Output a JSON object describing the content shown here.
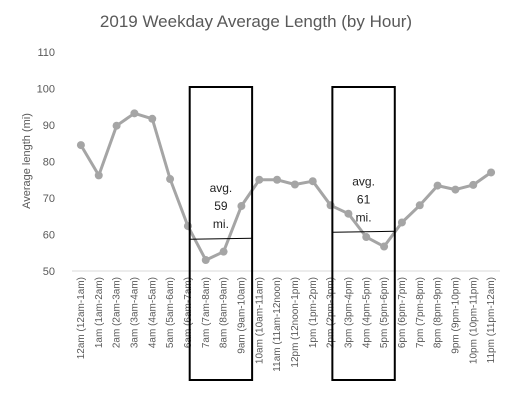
{
  "chart_data": {
    "type": "line",
    "title": "2019 Weekday Average Length (by Hour)",
    "xlabel": "",
    "ylabel": "Average length (mi)",
    "ylim": [
      50,
      110
    ],
    "yticks": [
      "50",
      "60",
      "70",
      "80",
      "90",
      "100",
      "110"
    ],
    "grid": false,
    "legend": "none",
    "categories": [
      "12am (12am-1am)",
      "1am (1am-2am)",
      "2am (2am-3am)",
      "3am (3am-4am)",
      "4am (4am-5am)",
      "5am (5am-6am)",
      "6am (6am-7am)",
      "7am (7am-8am)",
      "8am (8am-9am)",
      "9am (9am-10am)",
      "10am (10am-11am)",
      "11am (11am-12noon)",
      "12pm (12noon-1pm)",
      "1pm (1pm-2pm)",
      "2pm (2pm-3pm)",
      "3pm (3pm-4pm)",
      "4pm (4pm-5pm)",
      "5pm (5pm-6pm)",
      "6pm (6pm-7pm)",
      "7pm (7pm-8pm)",
      "8pm (8pm-9pm)",
      "9pm (9pm-10pm)",
      "10pm (10pm-11pm)",
      "11pm (11pm-12am)"
    ],
    "series": [
      {
        "values": [
          84.5,
          76.2,
          89.8,
          93.2,
          91.7,
          75.2,
          62.3,
          53.0,
          55.3,
          67.8,
          75.0,
          75.0,
          73.7,
          74.6,
          68.0,
          65.7,
          59.3,
          56.7,
          63.3,
          68.0,
          73.4,
          72.3,
          73.6,
          77.0
        ],
        "color": "#a5a5a5"
      }
    ],
    "annotations": [
      {
        "lines": [
          "avg.",
          "59",
          "mi."
        ],
        "box_from": "7am (7am-8am)",
        "box_to": "9am (9am-10am)",
        "avg_value": 58.7
      },
      {
        "lines": [
          "avg.",
          "61",
          "mi."
        ],
        "box_from": "3pm (3pm-4pm)",
        "box_to": "5pm (5pm-6pm)",
        "avg_value": 60.6
      }
    ]
  }
}
